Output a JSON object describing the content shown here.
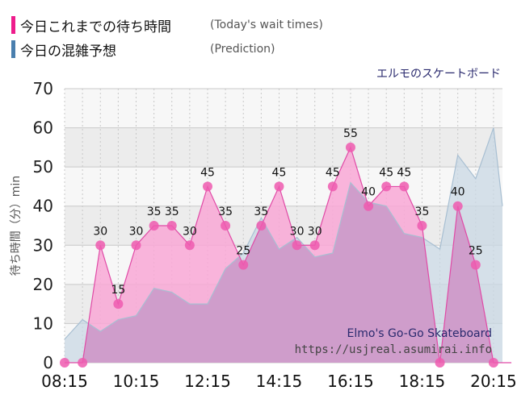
{
  "legend": [
    {
      "label_ja": "今日これまでの待ち時間",
      "label_en": "(Today's wait times)",
      "color": "#ee1c8c"
    },
    {
      "label_ja": "今日の混雑予想",
      "label_en": "(Prediction)",
      "color": "#4a7fae"
    }
  ],
  "colors": {
    "actual_line": "#e04aa6",
    "actual_fill": "#f9a8d6",
    "actual_marker": "#ee5aaf",
    "prediction_line": "#a8bfd2",
    "prediction_fill": "#c9d8e4",
    "overlap_fill": "#cf9dcb",
    "band_light": "#f7f7f7",
    "band_dark": "#ececec",
    "grid": "#c8c8c8",
    "caption": "#2a2a6e"
  },
  "chart_data": {
    "type": "area",
    "title": "エルモのスケートボード",
    "ylabel": "待ち時間（分）min",
    "ylim": [
      0,
      70
    ],
    "xlim": [
      "08:15",
      "20:30"
    ],
    "yticks": [
      0,
      10,
      20,
      30,
      40,
      50,
      60,
      70
    ],
    "xticks": [
      "08:15",
      "10:15",
      "12:15",
      "14:15",
      "16:15",
      "18:15",
      "20:15"
    ],
    "grid": true,
    "watermark": [
      "Elmo's Go-Go Skateboard",
      "https://usjreal.asumirai.info"
    ],
    "series": [
      {
        "name": "今日これまでの待ち時間",
        "x": [
          "08:15",
          "08:45",
          "09:15",
          "09:45",
          "10:15",
          "10:45",
          "11:15",
          "11:45",
          "12:15",
          "12:45",
          "13:15",
          "13:45",
          "14:15",
          "14:45",
          "15:15",
          "15:45",
          "16:15",
          "16:45",
          "17:15",
          "17:45",
          "18:15",
          "18:45",
          "19:15",
          "19:45",
          "20:15",
          "20:45"
        ],
        "values": [
          0,
          0,
          30,
          15,
          30,
          35,
          35,
          30,
          45,
          35,
          25,
          35,
          45,
          30,
          30,
          45,
          55,
          40,
          45,
          45,
          35,
          0,
          40,
          25,
          0,
          0
        ]
      },
      {
        "name": "今日の混雑予想",
        "x": [
          "08:15",
          "08:45",
          "09:15",
          "09:45",
          "10:15",
          "10:45",
          "11:15",
          "11:45",
          "12:15",
          "12:45",
          "13:15",
          "13:45",
          "14:15",
          "14:45",
          "15:15",
          "15:45",
          "16:15",
          "16:45",
          "17:15",
          "17:45",
          "18:15",
          "18:45",
          "19:15",
          "19:45",
          "20:15",
          "20:30"
        ],
        "values": [
          6,
          11,
          8,
          11,
          12,
          19,
          18,
          15,
          15,
          24,
          28,
          37,
          29,
          32,
          27,
          28,
          46,
          41,
          40,
          33,
          32,
          29,
          53,
          47,
          60,
          40
        ]
      }
    ]
  }
}
